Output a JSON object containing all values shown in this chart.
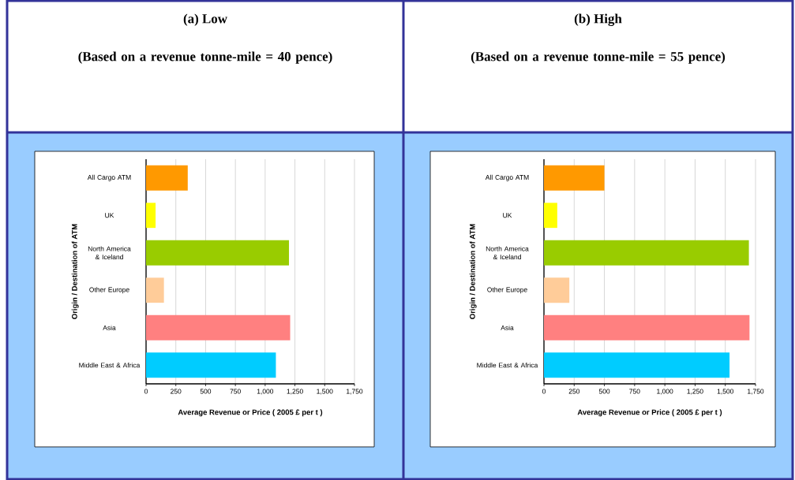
{
  "chart_data": [
    {
      "type": "bar",
      "orientation": "horizontal",
      "title": "(a) Low",
      "subtitle": "(Based on a revenue tonne-mile = 40 pence)",
      "xlabel": "Average Revenue or Price ( 2005 £ per t )",
      "ylabel": "Origin / Destination of ATM",
      "categories": [
        "All Cargo ATM",
        "UK",
        "North America & Iceland",
        "Other Europe",
        "Asia",
        "Middle East & Africa"
      ],
      "values": [
        350,
        80,
        1200,
        150,
        1210,
        1090
      ],
      "colors": [
        "#ff9900",
        "#ffff00",
        "#99cc00",
        "#ffcc99",
        "#ff8080",
        "#00ccff"
      ],
      "xlim": [
        0,
        1750
      ],
      "xticks": [
        0,
        250,
        500,
        750,
        {
          "value": 1000,
          "label": "1,000"
        },
        {
          "value": 1250,
          "label": "1,250"
        },
        {
          "value": 1500,
          "label": "1,500"
        },
        {
          "value": 1750,
          "label": "1,750"
        }
      ],
      "grid": "x"
    },
    {
      "type": "bar",
      "orientation": "horizontal",
      "title": "(b) High",
      "subtitle": "(Based on a revenue tonne-mile = 55 pence)",
      "xlabel": "Average Revenue or Price ( 2005 £ per t )",
      "ylabel": "Origin / Destination of ATM",
      "categories": [
        "All Cargo ATM",
        "UK",
        "North America & Iceland",
        "Other Europe",
        "Asia",
        "Middle East & Africa"
      ],
      "values": [
        500,
        110,
        1695,
        210,
        1700,
        1535
      ],
      "colors": [
        "#ff9900",
        "#ffff00",
        "#99cc00",
        "#ffcc99",
        "#ff8080",
        "#00ccff"
      ],
      "xlim": [
        0,
        1750
      ],
      "xticks": [
        0,
        250,
        500,
        750,
        {
          "value": 1000,
          "label": "1,000"
        },
        {
          "value": 1250,
          "label": "1,250"
        },
        {
          "value": 1500,
          "label": "1,500"
        },
        {
          "value": 1750,
          "label": "1,750"
        }
      ],
      "grid": "x"
    }
  ]
}
